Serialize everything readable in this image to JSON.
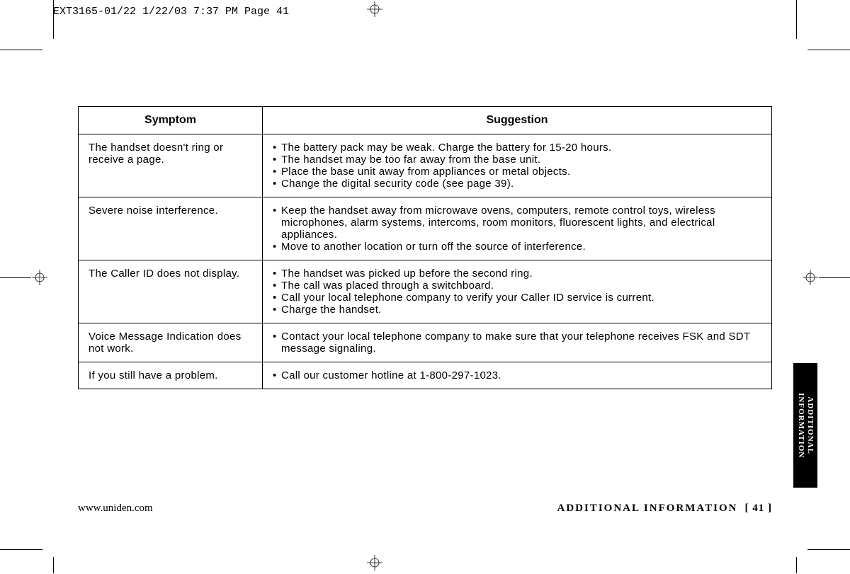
{
  "header": {
    "slug": "EXT3165-01/22  1/22/03  7:37 PM  Page 41"
  },
  "table": {
    "col1_header": "Symptom",
    "col2_header": "Suggestion",
    "rows": [
      {
        "symptom": "The handset doesn't ring or receive a page.",
        "bullets": [
          "The battery pack may be weak. Charge the battery for 15-20 hours.",
          "The handset may be too far away from the base unit.",
          "Place the base unit away from appliances or metal objects.",
          "Change the digital security code (see page 39)."
        ]
      },
      {
        "symptom": "Severe noise interference.",
        "bullets": [
          "Keep the handset away from microwave ovens, computers, remote control toys, wireless microphones, alarm systems, intercoms, room monitors, fluorescent lights, and electrical appliances.",
          "Move to another location or turn off the source of interference."
        ]
      },
      {
        "symptom": "The Caller ID does not display.",
        "bullets": [
          "The handset was picked up before the second ring.",
          "The call was placed through a switchboard.",
          "Call your local telephone company to verify your Caller ID service is current.",
          "Charge the handset."
        ]
      },
      {
        "symptom": "Voice Message Indication does not work.",
        "bullets": [
          "Contact your local telephone company to make sure that your telephone receives FSK and SDT message signaling."
        ]
      },
      {
        "symptom": "If you still have a problem.",
        "bullets": [
          "Call our customer hotline at 1-800-297-1023."
        ]
      }
    ]
  },
  "footer": {
    "url": "www.uniden.com",
    "section": "ADDITIONAL INFORMATION",
    "page": "[ 41 ]"
  },
  "sidetab": {
    "line1": "ADDITIONAL",
    "line2": "INFORMATION"
  }
}
